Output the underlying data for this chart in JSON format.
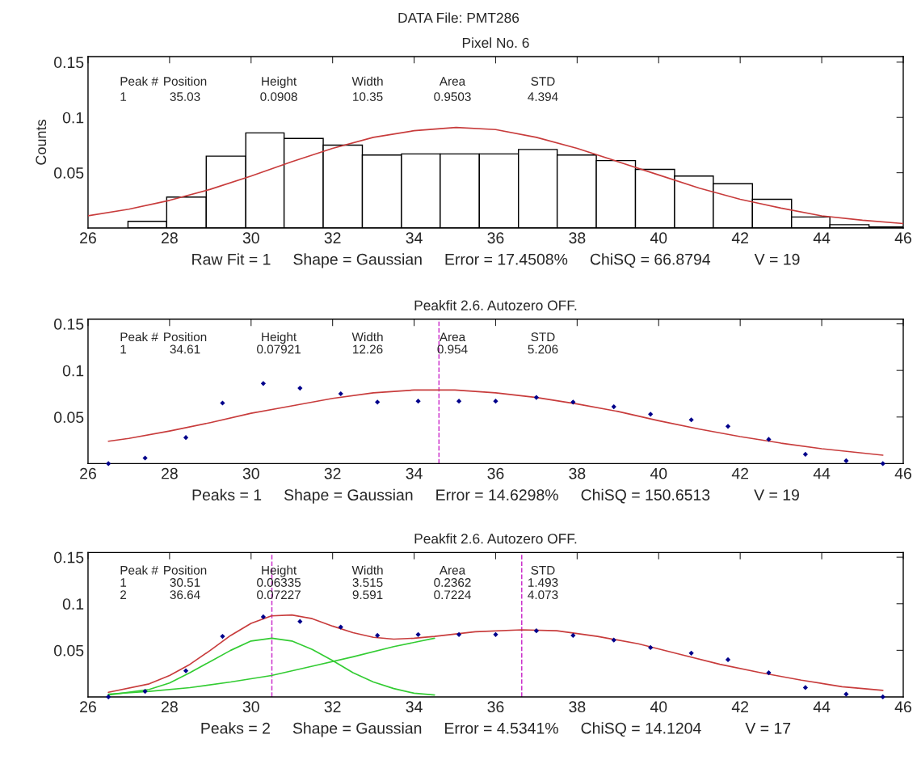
{
  "chart_data": [
    {
      "type": "histogram",
      "title": "DATA File: PMT286",
      "subtitle": "Pixel No. 6",
      "xlabel": "Raw Fit = 1     Shape = Gaussian     Error = 17.4508%     ChiSQ = 66.8794          V = 19",
      "ylabel": "Counts",
      "bins": [
        26.98,
        27.93,
        28.9,
        29.87,
        30.81,
        31.77,
        32.73,
        33.69,
        34.64,
        35.6,
        36.56,
        37.51,
        38.47,
        39.43,
        40.39,
        41.34,
        42.3,
        43.26,
        44.2,
        45.16,
        46.07
      ],
      "values": [
        0.006,
        0.028,
        0.065,
        0.086,
        0.081,
        0.075,
        0.066,
        0.067,
        0.067,
        0.067,
        0.071,
        0.066,
        0.061,
        0.053,
        0.047,
        0.04,
        0.026,
        0.01,
        0.003,
        0.001
      ],
      "color": "#ffffff",
      "series": [
        {
          "type": "line",
          "color": "#c83c3c",
          "x": [
            26,
            27,
            28,
            29,
            30,
            31,
            32,
            33,
            34,
            35.03,
            36,
            37,
            38,
            39,
            40,
            41,
            42,
            43,
            44,
            45,
            46
          ],
          "values": [
            0.011,
            0.017,
            0.025,
            0.035,
            0.047,
            0.06,
            0.072,
            0.082,
            0.088,
            0.091,
            0.089,
            0.082,
            0.072,
            0.06,
            0.048,
            0.036,
            0.026,
            0.018,
            0.011,
            0.007,
            0.004
          ]
        }
      ],
      "annotations": [
        "Peak #",
        "Position",
        "Height",
        "Width",
        "Area",
        "STD",
        "1",
        "35.03",
        "0.0908",
        "10.35",
        "0.9503",
        "4.394"
      ],
      "xlim": [
        26,
        46
      ],
      "xticks": [
        26,
        28,
        30,
        32,
        34,
        36,
        38,
        40,
        42,
        44,
        46
      ],
      "ylim": [
        0,
        0.155
      ],
      "yticks": [
        0.05,
        0.1,
        0.15
      ],
      "grid": false,
      "legend": false
    },
    {
      "type": "scatter",
      "subtitle": "Peakfit 2.6. Autozero OFF.",
      "xlabel": "Peaks = 1     Shape = Gaussian     Error = 14.6298%     ChiSQ = 150.6513          V = 19",
      "series": [
        {
          "type": "line",
          "color": "#c83c3c",
          "x": [
            26.5,
            27,
            28,
            29,
            30,
            31,
            32,
            33,
            34,
            34.61,
            35,
            36,
            37,
            38,
            39,
            40,
            41,
            42,
            43,
            44,
            45.5
          ],
          "values": [
            0.024,
            0.027,
            0.035,
            0.044,
            0.054,
            0.062,
            0.07,
            0.076,
            0.079,
            0.079,
            0.079,
            0.076,
            0.071,
            0.064,
            0.056,
            0.046,
            0.037,
            0.029,
            0.022,
            0.016,
            0.009
          ]
        },
        {
          "type": "scatter",
          "marker": "diamond",
          "color": "#00008b",
          "x": [
            26.5,
            27.4,
            28.4,
            29.3,
            30.3,
            31.2,
            32.2,
            33.1,
            34.1,
            35.1,
            36.0,
            37.0,
            37.9,
            38.9,
            39.8,
            40.8,
            41.7,
            42.7,
            43.6,
            44.6,
            45.5
          ],
          "values": [
            0,
            0.006,
            0.028,
            0.065,
            0.086,
            0.081,
            0.075,
            0.066,
            0.067,
            0.067,
            0.067,
            0.071,
            0.066,
            0.061,
            0.053,
            0.047,
            0.04,
            0.026,
            0.01,
            0.003,
            0
          ]
        }
      ],
      "ref_lines": [
        {
          "axis": "x",
          "value": 34.61,
          "color": "#cc33cc",
          "line_style": "dashed"
        }
      ],
      "annotations": [
        "Peak #",
        "Position",
        "Height",
        "Width",
        "Area",
        "STD",
        "1",
        "34.61",
        "0.07921",
        "12.26",
        "0.954",
        "5.206"
      ],
      "xlim": [
        26,
        46
      ],
      "xticks": [
        26,
        28,
        30,
        32,
        34,
        36,
        38,
        40,
        42,
        44,
        46
      ],
      "ylim": [
        0,
        0.155
      ],
      "yticks": [
        0.05,
        0.1,
        0.15
      ],
      "grid": false,
      "legend": false
    },
    {
      "type": "scatter",
      "subtitle": "Peakfit 2.6. Autozero OFF.",
      "xlabel": "Peaks = 2     Shape = Gaussian     Error = 4.5341%     ChiSQ = 14.1204          V = 17",
      "series": [
        {
          "type": "line",
          "color": "#33cc33",
          "x": [
            26.5,
            27.5,
            28,
            28.5,
            29,
            29.5,
            30,
            30.51,
            31,
            31.5,
            32,
            32.5,
            33,
            33.5,
            34,
            34.5
          ],
          "values": [
            0.002,
            0.008,
            0.015,
            0.026,
            0.038,
            0.05,
            0.06,
            0.063,
            0.06,
            0.051,
            0.039,
            0.026,
            0.016,
            0.009,
            0.004,
            0.002
          ]
        },
        {
          "type": "line",
          "color": "#33cc33",
          "x": [
            26.5,
            27.5,
            28.5,
            29.5,
            30.5,
            31.5,
            32.5,
            33.5,
            34.5
          ],
          "values": [
            0.003,
            0.006,
            0.01,
            0.016,
            0.023,
            0.033,
            0.043,
            0.054,
            0.063
          ]
        },
        {
          "type": "line",
          "color": "#c83c3c",
          "x": [
            26.5,
            27.5,
            28,
            28.5,
            29,
            29.5,
            30,
            30.5,
            31,
            31.5,
            32,
            32.5,
            33,
            33.5,
            34,
            34.5,
            35.5,
            36.64,
            37.5,
            38.5,
            39.5,
            40.5,
            41.5,
            42.5,
            43.5,
            44.5,
            45.5
          ],
          "values": [
            0.005,
            0.014,
            0.023,
            0.035,
            0.05,
            0.066,
            0.079,
            0.087,
            0.088,
            0.084,
            0.076,
            0.069,
            0.064,
            0.062,
            0.063,
            0.065,
            0.07,
            0.072,
            0.071,
            0.065,
            0.057,
            0.046,
            0.035,
            0.026,
            0.018,
            0.011,
            0.007
          ]
        },
        {
          "type": "scatter",
          "marker": "diamond",
          "color": "#00008b",
          "x": [
            26.5,
            27.4,
            28.4,
            29.3,
            30.3,
            31.2,
            32.2,
            33.1,
            34.1,
            35.1,
            36.0,
            37.0,
            37.9,
            38.9,
            39.8,
            40.8,
            41.7,
            42.7,
            43.6,
            44.6,
            45.5
          ],
          "values": [
            0,
            0.006,
            0.028,
            0.065,
            0.086,
            0.081,
            0.075,
            0.066,
            0.067,
            0.067,
            0.067,
            0.071,
            0.066,
            0.061,
            0.053,
            0.047,
            0.04,
            0.026,
            0.01,
            0.003,
            0
          ]
        }
      ],
      "ref_lines": [
        {
          "axis": "x",
          "value": 30.51,
          "color": "#cc33cc",
          "line_style": "dashed"
        },
        {
          "axis": "x",
          "value": 36.64,
          "color": "#cc33cc",
          "line_style": "dashed"
        }
      ],
      "annotations": [
        "Peak #",
        "Position",
        "Height",
        "Width",
        "Area",
        "STD",
        "1",
        "30.51",
        "0.06335",
        "3.515",
        "0.2362",
        "1.493",
        "2",
        "36.64",
        "0.07227",
        "9.591",
        "0.7224",
        "4.073"
      ],
      "xlim": [
        26,
        46
      ],
      "xticks": [
        26,
        28,
        30,
        32,
        34,
        36,
        38,
        40,
        42,
        44,
        46
      ],
      "ylim": [
        0,
        0.155
      ],
      "yticks": [
        0.05,
        0.1,
        0.15
      ],
      "grid": false,
      "legend": false
    }
  ]
}
